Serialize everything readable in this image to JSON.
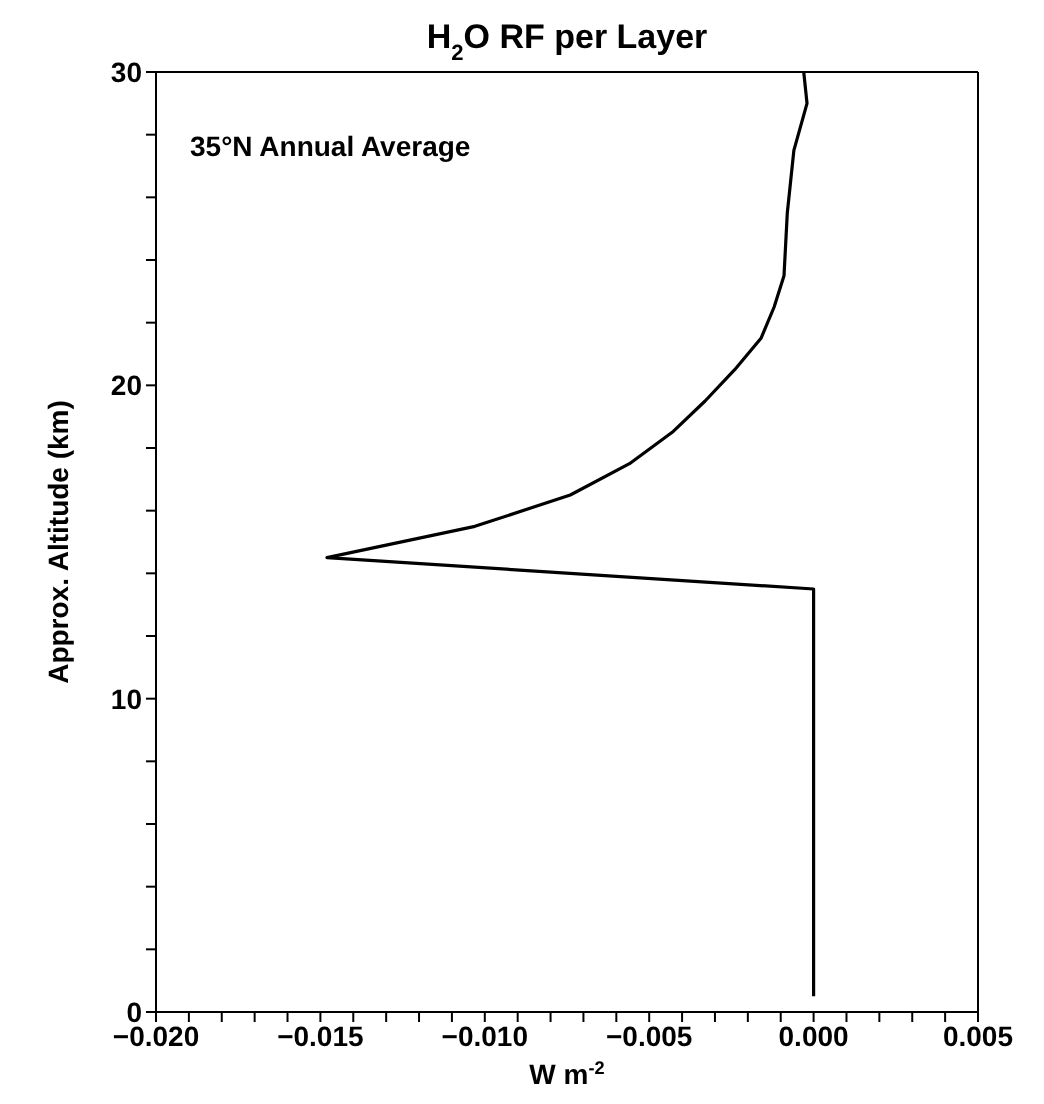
{
  "chart_data": {
    "type": "line",
    "title": "H$_{2}$O RF per Layer",
    "xlabel": "W m$^{-2}$",
    "ylabel": "Approx. Altitude (km)",
    "annotations": [
      "35°N Annual Average"
    ],
    "series": [
      {
        "color": "#000000",
        "x": [
          0,
          0,
          -0.0148,
          -0.0103,
          -0.0074,
          -0.0056,
          -0.0043,
          -0.0033,
          -0.0024,
          -0.0016,
          -0.0012,
          -0.0009,
          -0.0008,
          -0.0006,
          -0.0002,
          -0.0003
        ],
        "values": [
          0.5,
          13.5,
          14.5,
          15.5,
          16.5,
          17.5,
          18.5,
          19.5,
          20.5,
          21.5,
          22.5,
          23.5,
          25.5,
          27.5,
          29,
          30
        ]
      }
    ],
    "xlim": [
      -0.02,
      0.005
    ],
    "xticks": [
      {
        "value": -0.02,
        "label": "−0.020"
      },
      {
        "value": -0.019,
        "label": null
      },
      {
        "value": -0.018,
        "label": null
      },
      {
        "value": -0.017,
        "label": null
      },
      {
        "value": -0.016,
        "label": null
      },
      {
        "value": -0.015,
        "label": "−0.015"
      },
      {
        "value": -0.014,
        "label": null
      },
      {
        "value": -0.013,
        "label": null
      },
      {
        "value": -0.012,
        "label": null
      },
      {
        "value": -0.011,
        "label": null
      },
      {
        "value": -0.01,
        "label": "−0.010"
      },
      {
        "value": -0.009,
        "label": null
      },
      {
        "value": -0.008,
        "label": null
      },
      {
        "value": -0.007,
        "label": null
      },
      {
        "value": -0.006,
        "label": null
      },
      {
        "value": -0.005,
        "label": "−0.005"
      },
      {
        "value": -0.004,
        "label": null
      },
      {
        "value": -0.003,
        "label": null
      },
      {
        "value": -0.002,
        "label": null
      },
      {
        "value": -0.001,
        "label": null
      },
      {
        "value": 0,
        "label": "0.000"
      },
      {
        "value": 0.001,
        "label": null
      },
      {
        "value": 0.002,
        "label": null
      },
      {
        "value": 0.003,
        "label": null
      },
      {
        "value": 0.004,
        "label": null
      },
      {
        "value": 0.005,
        "label": "0.005"
      }
    ],
    "ylim": [
      0,
      30
    ],
    "yticks": [
      0,
      {
        "value": 2,
        "label": null
      },
      {
        "value": 4,
        "label": null
      },
      {
        "value": 6,
        "label": null
      },
      {
        "value": 8,
        "label": null
      },
      10,
      {
        "value": 12,
        "label": null
      },
      {
        "value": 14,
        "label": null
      },
      {
        "value": 16,
        "label": null
      },
      {
        "value": 18,
        "label": null
      },
      20,
      {
        "value": 22,
        "label": null
      },
      {
        "value": 24,
        "label": null
      },
      {
        "value": 26,
        "label": null
      },
      {
        "value": 28,
        "label": null
      },
      30
    ],
    "marker": "none",
    "line_style": "solid"
  }
}
